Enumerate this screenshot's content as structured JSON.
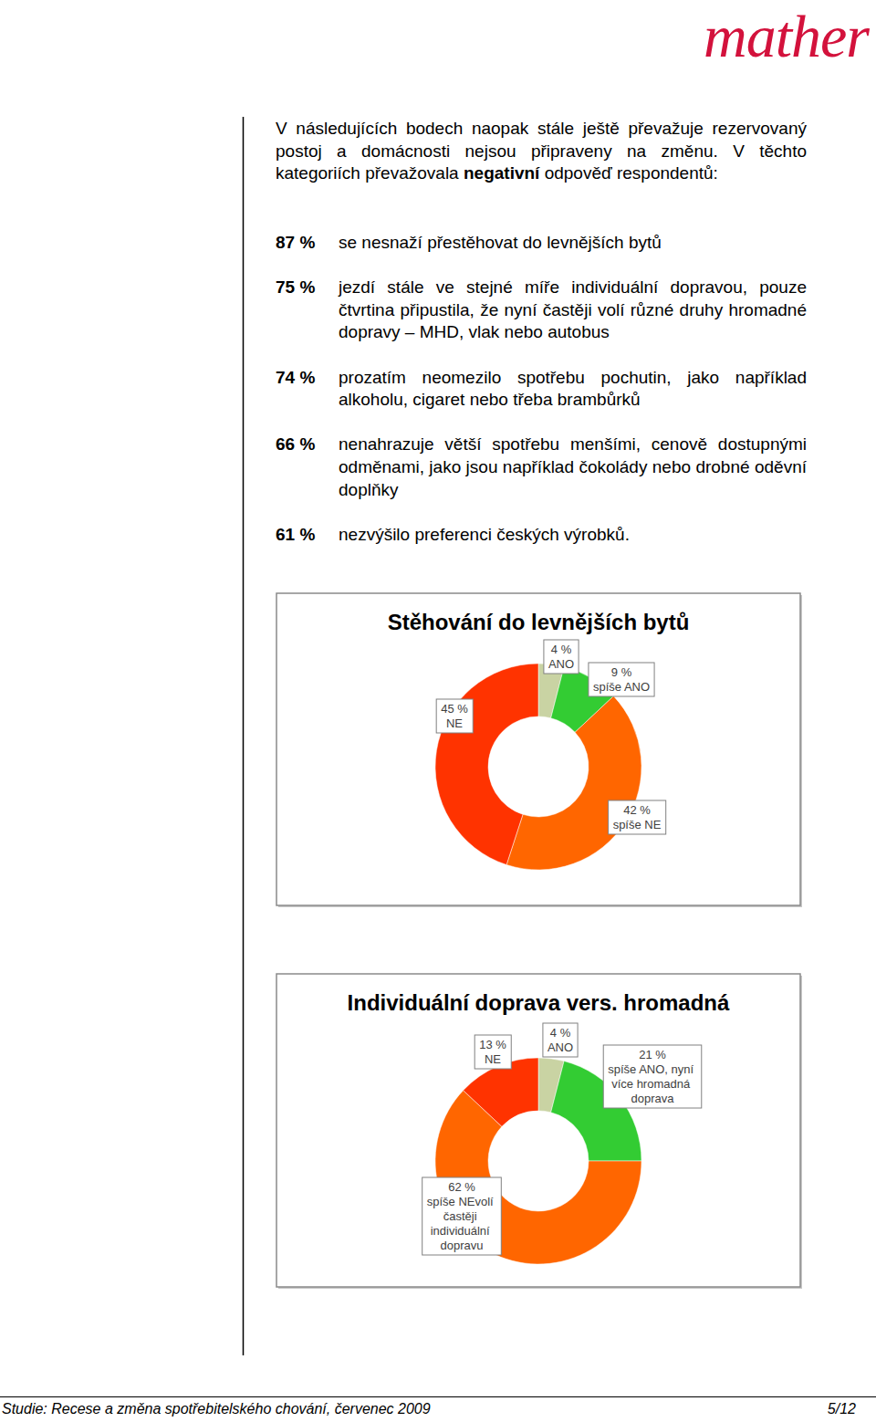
{
  "logo": "mather",
  "intro": {
    "before": "V následujících bodech naopak stále ještě převažuje rezervovaný postoj a domácnosti nejsou připraveny na změnu. V těchto kategoriích převažovala ",
    "bold": "negativní",
    "after": " odpověď respondentů:"
  },
  "items": [
    {
      "label": "87 %",
      "text": "se nesnaží přestěhovat do levnějších bytů"
    },
    {
      "label": "75 %",
      "text": "jezdí stále ve stejné míře individuální dopravou, pouze čtvrtina připustila, že nyní častěji volí různé druhy hromadné dopravy – MHD, vlak nebo autobus"
    },
    {
      "label": "74 %",
      "text": "prozatím neomezilo spotřebu pochutin, jako například alkoholu, cigaret nebo třeba brambůrků"
    },
    {
      "label": "66 %",
      "text": "nenahrazuje větší spotřebu menšími, cenově dostupnými odměnami, jako jsou například čokolády nebo drobné oděvní doplňky"
    },
    {
      "label": "61 %",
      "text": "nezvýšilo preferenci českých výrobků."
    }
  ],
  "chart_data": [
    {
      "type": "pie",
      "title": "Stěhování do levnějších bytů",
      "categories": [
        "ANO",
        "spíše ANO",
        "spíše NE",
        "NE"
      ],
      "values": [
        4,
        9,
        42,
        45
      ],
      "value_labels": [
        "4 %",
        "9 %",
        "42 %",
        "45 %"
      ],
      "colors": [
        "#c9d3a3",
        "#33cc33",
        "#ff6600",
        "#ff3300"
      ],
      "data_labels": true
    },
    {
      "type": "pie",
      "title": "Individuální doprava vers. hromadná",
      "categories": [
        "ANO",
        "spíše ANO, nyní více hromadná doprava",
        "spíše NEvolí častěji individuální dopravu",
        "NE"
      ],
      "values": [
        4,
        21,
        62,
        13
      ],
      "value_labels": [
        "4 %",
        "21 %",
        "62 %",
        "13 %"
      ],
      "colors": [
        "#c9d3a3",
        "#33cc33",
        "#ff6600",
        "#ff3300"
      ],
      "data_labels": true
    }
  ],
  "footer": {
    "text": "Studie: Recese a změna spotřebitelského chování, červenec 2009",
    "page": "5/12"
  }
}
